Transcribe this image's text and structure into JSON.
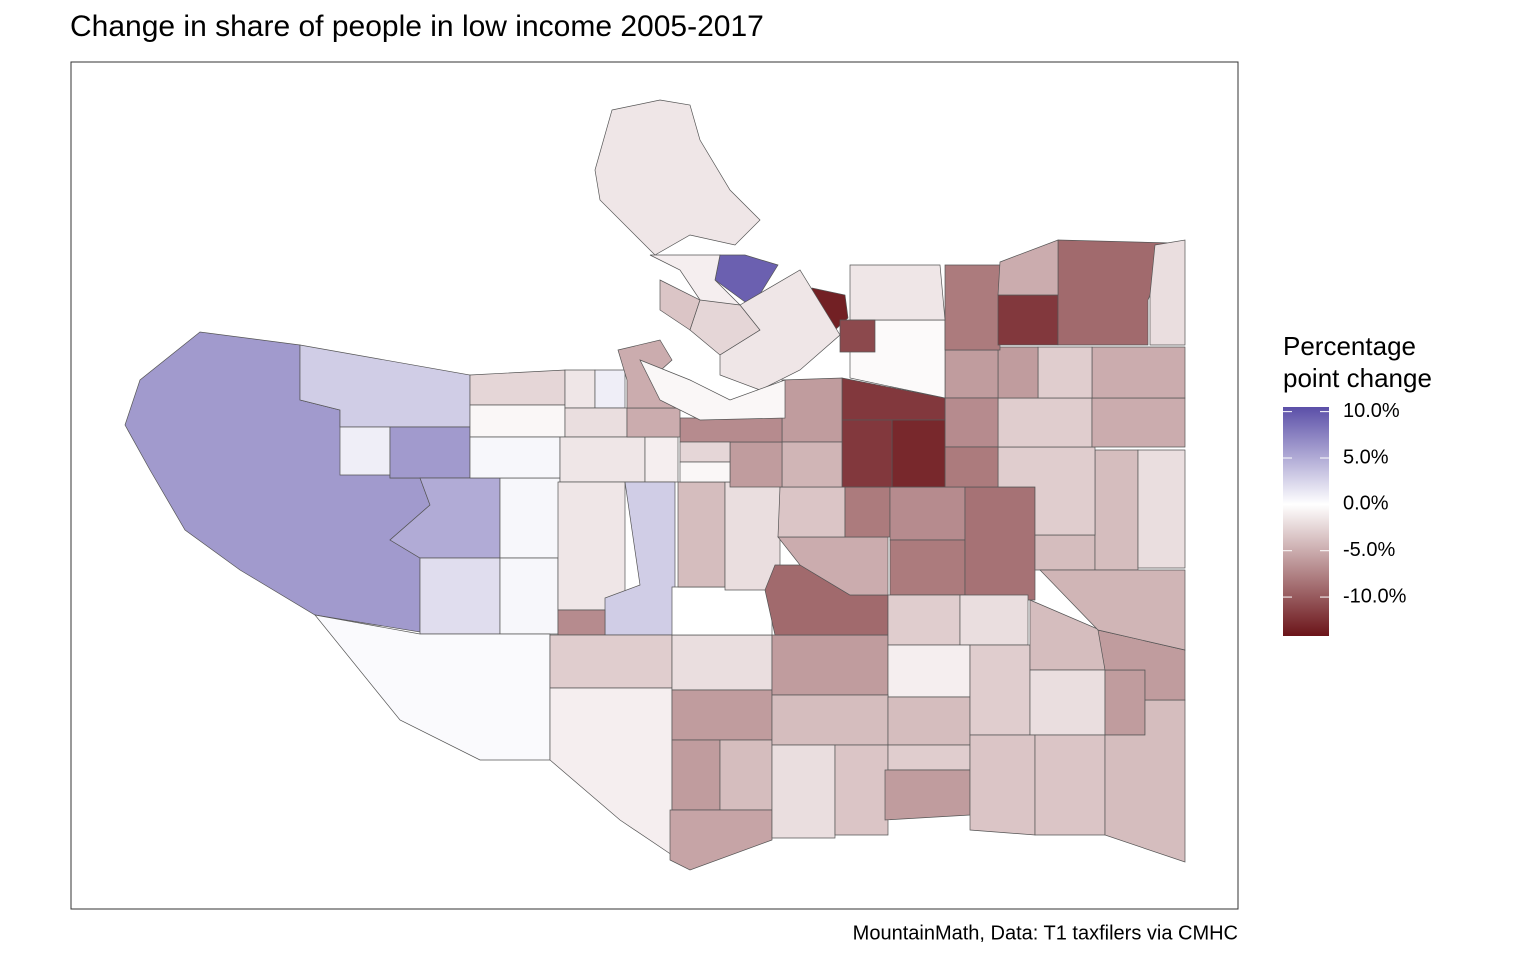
{
  "chart_data": {
    "type": "choropleth",
    "title": "Change in share of people in low income 2005-2017",
    "caption": "MountainMath, Data: T1 taxfilers via CMHC",
    "legend_title": [
      "Percentage",
      "point change"
    ],
    "colorbar": {
      "lim": [
        -14.2,
        10.5
      ],
      "ticks": [
        {
          "value": 10,
          "label": "10.0%"
        },
        {
          "value": 5,
          "label": "5.0%"
        },
        {
          "value": 0,
          "label": "0.0%"
        },
        {
          "value": -5,
          "label": "-5.0%"
        },
        {
          "value": -10,
          "label": "-10.0%"
        }
      ],
      "low_color": "#6b1419",
      "mid_color": "#ffffff",
      "high_color": "#5b4fa8"
    },
    "values": [
      6,
      3,
      1,
      6,
      5,
      2,
      0.5,
      0.5,
      0.3,
      -2.5,
      -0.5,
      0.5,
      -1.5,
      1,
      -2,
      -1.5,
      -1,
      -1.5,
      3,
      -7,
      -3,
      -1,
      -2,
      0,
      -4,
      -2,
      -6,
      -6,
      -4,
      -5.5,
      -6,
      -9,
      -5,
      -3.5,
      -8,
      -7,
      -8,
      -8.5,
      -3,
      -2,
      -1,
      -4,
      -2,
      -3.5,
      -4,
      -3,
      -6,
      -3,
      -4,
      -2,
      -3.5,
      -3.5,
      -6,
      -4,
      -6,
      -4,
      -4,
      -2,
      -4.5,
      -3,
      -3,
      -5,
      -5,
      -3,
      -6,
      -6,
      -7,
      -8,
      -12,
      -13,
      -12,
      -6,
      -4.5,
      -6,
      -7,
      -2.5,
      -0.5,
      -5,
      -5,
      -0.3,
      -8,
      -12,
      -9,
      -5,
      -2,
      -1.5,
      -13.5,
      -11,
      -1.5,
      9.5,
      -1,
      -3.5,
      -2.5,
      -1.5,
      -0.5
    ]
  }
}
